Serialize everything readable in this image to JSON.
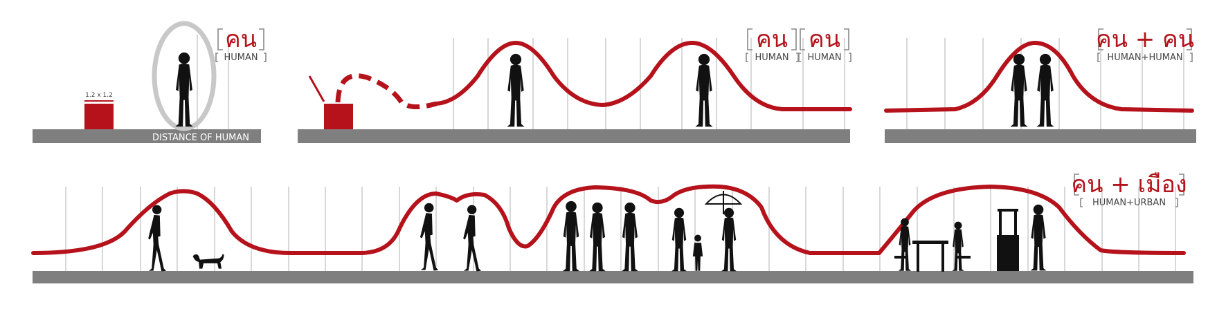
{
  "panels": [
    {
      "id": "single-human",
      "thai": "คน",
      "english": "HUMAN",
      "ground_label": "DISTANCE OF HUMAN",
      "box_label": "1.2 x 1.2"
    },
    {
      "id": "two-humans",
      "labels": [
        {
          "thai": "คน",
          "english": "HUMAN"
        },
        {
          "thai": "คน",
          "english": "HUMAN"
        }
      ]
    },
    {
      "id": "human-plus-human",
      "thai": "คน + คน",
      "english": "HUMAN+HUMAN"
    },
    {
      "id": "human-plus-urban",
      "thai": "คน + เมือง",
      "english": "HUMAN+URBAN"
    }
  ],
  "colors": {
    "accent_red": "#b5121b",
    "ground_gray": "#7f7f7f",
    "grid_gray": "#d8d8d8",
    "halo_gray": "#c8c8c8",
    "silhouette": "#111111"
  }
}
